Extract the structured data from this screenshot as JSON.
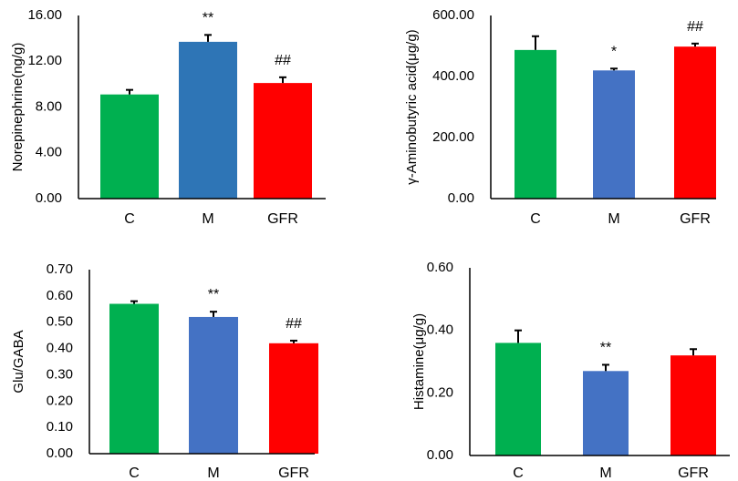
{
  "figure": {
    "colors": {
      "C": "#00B050",
      "M": "#4472C4",
      "GFR": "#FF0000",
      "axis": "#000000"
    }
  },
  "chart_data": [
    {
      "type": "bar",
      "ylabel": "Norepinephrine(ng/g)",
      "categories": [
        "C",
        "M",
        "GFR"
      ],
      "values": [
        9.1,
        13.7,
        10.1
      ],
      "errors": [
        0.4,
        0.6,
        0.5
      ],
      "bar_colors": [
        "#00B050",
        "#2E75B6",
        "#FF0000"
      ],
      "annotations": [
        "",
        "**",
        "##"
      ],
      "ylim": [
        0,
        16
      ],
      "yticks": [
        0,
        4,
        8,
        12,
        16
      ],
      "ytick_labels": [
        "0.00",
        "4.00",
        "8.00",
        "12.00",
        "16.00"
      ]
    },
    {
      "type": "bar",
      "ylabel": "γ-Aminobutyric acid(μg/g)",
      "categories": [
        "C",
        "M",
        "GFR"
      ],
      "values": [
        487,
        420,
        498
      ],
      "errors": [
        45,
        6,
        10
      ],
      "bar_colors": [
        "#00B050",
        "#4472C4",
        "#FF0000"
      ],
      "annotations": [
        "",
        "*",
        "##"
      ],
      "ylim": [
        0,
        600
      ],
      "yticks": [
        0,
        200,
        400,
        600
      ],
      "ytick_labels": [
        "0.00",
        "200.00",
        "400.00",
        "600.00"
      ]
    },
    {
      "type": "bar",
      "ylabel": "Glu/GABA",
      "categories": [
        "C",
        "M",
        "GFR"
      ],
      "values": [
        0.57,
        0.52,
        0.42
      ],
      "errors": [
        0.01,
        0.02,
        0.01
      ],
      "bar_colors": [
        "#00B050",
        "#4472C4",
        "#FF0000"
      ],
      "annotations": [
        "",
        "**",
        "##"
      ],
      "ylim": [
        0,
        0.7
      ],
      "yticks": [
        0,
        0.1,
        0.2,
        0.3,
        0.4,
        0.5,
        0.6,
        0.7
      ],
      "ytick_labels": [
        "0.00",
        "0.10",
        "0.20",
        "0.30",
        "0.40",
        "0.50",
        "0.60",
        "0.70"
      ]
    },
    {
      "type": "bar",
      "ylabel": "Histamine(μg/g)",
      "categories": [
        "C",
        "M",
        "GFR"
      ],
      "values": [
        0.36,
        0.27,
        0.32
      ],
      "errors": [
        0.04,
        0.02,
        0.02
      ],
      "bar_colors": [
        "#00B050",
        "#4472C4",
        "#FF0000"
      ],
      "annotations": [
        "",
        "**",
        ""
      ],
      "ylim": [
        0,
        0.6
      ],
      "yticks": [
        0,
        0.2,
        0.4,
        0.6
      ],
      "ytick_labels": [
        "0.00",
        "0.20",
        "0.40",
        "0.60"
      ]
    }
  ]
}
